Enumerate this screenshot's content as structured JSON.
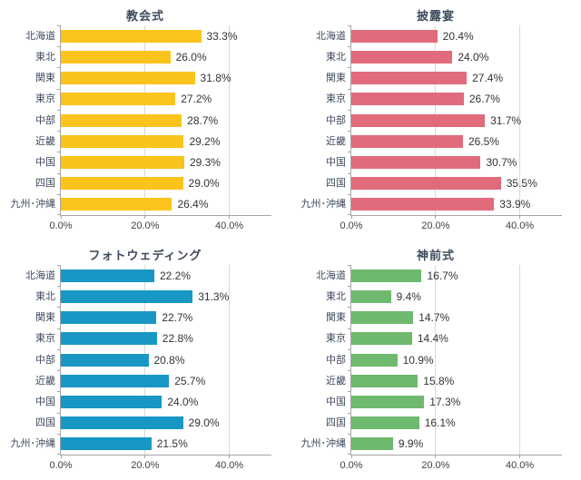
{
  "style": {
    "background": "#ffffff",
    "title_color": "#3e4a5e",
    "category_color": "#3e4a5e",
    "value_color": "#333333",
    "tick_color": "#404040",
    "axis_color": "#a6a6a6",
    "grid_color": "#d9d9d9"
  },
  "chart_data": [
    {
      "type": "bar",
      "orientation": "horizontal",
      "title": "教会式",
      "categories": [
        "北海道",
        "東北",
        "関東",
        "東京",
        "中部",
        "近畿",
        "中国",
        "四国",
        "九州･沖縄"
      ],
      "values": [
        33.3,
        26.0,
        31.8,
        27.2,
        28.7,
        29.2,
        29.3,
        29.0,
        26.4
      ],
      "value_labels": [
        "33.3%",
        "26.0%",
        "31.8%",
        "27.2%",
        "28.7%",
        "29.2%",
        "29.3%",
        "29.0%",
        "26.4%"
      ],
      "bar_color": "#fbc41c",
      "xlim": [
        0,
        50
      ],
      "x_ticks": [
        {
          "value": 0,
          "label": "0.0%"
        },
        {
          "value": 20,
          "label": "20.0%"
        },
        {
          "value": 40,
          "label": "40.0%"
        }
      ],
      "gridlines": [
        20,
        40
      ],
      "legend": "none"
    },
    {
      "type": "bar",
      "orientation": "horizontal",
      "title": "披露宴",
      "categories": [
        "北海道",
        "東北",
        "関東",
        "東京",
        "中部",
        "近畿",
        "中国",
        "四国",
        "九州･沖縄"
      ],
      "values": [
        20.4,
        24.0,
        27.4,
        26.7,
        31.7,
        26.5,
        30.7,
        35.5,
        33.9
      ],
      "value_labels": [
        "20.4%",
        "24.0%",
        "27.4%",
        "26.7%",
        "31.7%",
        "26.5%",
        "30.7%",
        "35.5%",
        "33.9%"
      ],
      "bar_color": "#e16b7d",
      "xlim": [
        0,
        50
      ],
      "x_ticks": [
        {
          "value": 0,
          "label": "0.0%"
        },
        {
          "value": 20,
          "label": "20.0%"
        },
        {
          "value": 40,
          "label": "40.0%"
        }
      ],
      "gridlines": [
        20,
        40
      ],
      "legend": "none"
    },
    {
      "type": "bar",
      "orientation": "horizontal",
      "title": "フォトウェディング",
      "categories": [
        "北海道",
        "東北",
        "関東",
        "東京",
        "中部",
        "近畿",
        "中国",
        "四国",
        "九州･沖縄"
      ],
      "values": [
        22.2,
        31.3,
        22.7,
        22.8,
        20.8,
        25.7,
        24.0,
        29.0,
        21.5
      ],
      "value_labels": [
        "22.2%",
        "31.3%",
        "22.7%",
        "22.8%",
        "20.8%",
        "25.7%",
        "24.0%",
        "29.0%",
        "21.5%"
      ],
      "bar_color": "#1897c5",
      "xlim": [
        0,
        50
      ],
      "x_ticks": [
        {
          "value": 0,
          "label": "0.0%"
        },
        {
          "value": 20,
          "label": "20.0%"
        },
        {
          "value": 40,
          "label": "40.0%"
        }
      ],
      "gridlines": [
        20,
        40
      ],
      "legend": "none"
    },
    {
      "type": "bar",
      "orientation": "horizontal",
      "title": "神前式",
      "categories": [
        "北海道",
        "東北",
        "関東",
        "東京",
        "中部",
        "近畿",
        "中国",
        "四国",
        "九州･沖縄"
      ],
      "values": [
        16.7,
        9.4,
        14.7,
        14.4,
        10.9,
        15.8,
        17.3,
        16.1,
        9.9
      ],
      "value_labels": [
        "16.7%",
        "9.4%",
        "14.7%",
        "14.4%",
        "10.9%",
        "15.8%",
        "17.3%",
        "16.1%",
        "9.9%"
      ],
      "bar_color": "#6fb96f",
      "xlim": [
        0,
        50
      ],
      "x_ticks": [
        {
          "value": 0,
          "label": "0.0%"
        },
        {
          "value": 20,
          "label": "20.0%"
        },
        {
          "value": 40,
          "label": "40.0%"
        }
      ],
      "gridlines": [
        20,
        40
      ],
      "legend": "none"
    }
  ]
}
